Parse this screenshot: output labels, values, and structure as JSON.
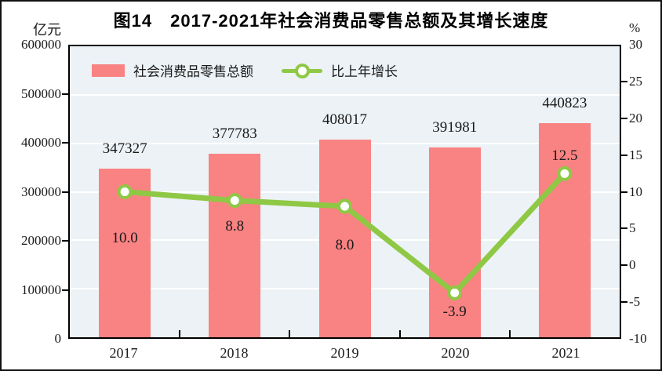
{
  "title": "图14　2017-2021年社会消费品零售总额及其增长速度",
  "axes": {
    "left_unit": "亿元",
    "right_unit": "%"
  },
  "legend": {
    "bar_label": "社会消费品零售总额",
    "line_label": "比上年增长"
  },
  "colors": {
    "bar": "#f98282",
    "line": "#8fc845",
    "marker_fill": "#ffffff",
    "plot_bg": "#ecf2f6",
    "grid": "#ffffff",
    "axis": "#000000",
    "text": "#1a1a1a"
  },
  "chart_data": {
    "type": "bar",
    "subtype": "bar-line combo, dual axis",
    "title": "图14　2017-2021年社会消费品零售总额及其增长速度",
    "categories": [
      "2017",
      "2018",
      "2019",
      "2020",
      "2021"
    ],
    "series": [
      {
        "name": "社会消费品零售总额",
        "type": "bar",
        "axis": "left",
        "unit": "亿元",
        "values": [
          347327,
          377783,
          408017,
          391981,
          440823
        ]
      },
      {
        "name": "比上年增长",
        "type": "line",
        "axis": "right",
        "unit": "%",
        "values": [
          10.0,
          8.8,
          8.0,
          -3.9,
          12.5
        ]
      }
    ],
    "bar_value_labels": [
      "347327",
      "377783",
      "408017",
      "391981",
      "440823"
    ],
    "line_value_labels": [
      "10.0",
      "8.8",
      "8.0",
      "-3.9",
      "12.5"
    ],
    "left_axis": {
      "min": 0,
      "max": 600000,
      "step": 100000,
      "tick_labels": [
        "600000",
        "500000",
        "400000",
        "300000",
        "200000",
        "100000",
        "0"
      ]
    },
    "right_axis": {
      "min": -10,
      "max": 30,
      "step": 5,
      "tick_labels": [
        "30",
        "25",
        "20",
        "15",
        "10",
        "5",
        "0",
        "-5",
        "-10"
      ]
    },
    "grid": "horizontal white gridlines at each left-axis step",
    "legend_position": "top-left inside plot"
  }
}
